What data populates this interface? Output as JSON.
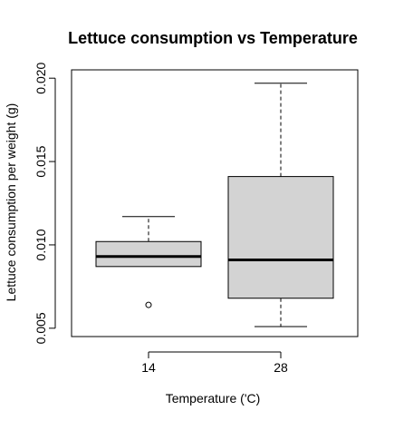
{
  "chart_data": {
    "type": "boxplot",
    "title": "Lettuce consumption vs Temperature",
    "xlabel": "Temperature ('C)",
    "ylabel": "Lettuce consumption per weight (g)",
    "ylim": [
      0.0045,
      0.0205
    ],
    "yticks": [
      0.005,
      0.01,
      0.015,
      0.02
    ],
    "ytick_labels": [
      "0.005",
      "0.010",
      "0.015",
      "0.020"
    ],
    "categories": [
      "14",
      "28"
    ],
    "boxes": [
      {
        "category": "14",
        "whisker_low": 0.0087,
        "q1": 0.0087,
        "median": 0.0093,
        "q3": 0.0102,
        "whisker_high": 0.0117,
        "outliers": [
          0.0064
        ]
      },
      {
        "category": "28",
        "whisker_low": 0.0051,
        "q1": 0.0068,
        "median": 0.0091,
        "q3": 0.0141,
        "whisker_high": 0.0197,
        "outliers": []
      }
    ],
    "box_fill": "#d3d3d3",
    "line_color": "#000000"
  }
}
